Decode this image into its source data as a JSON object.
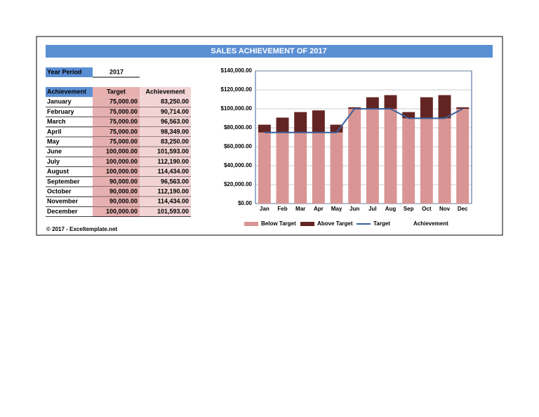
{
  "header": {
    "title": "SALES ACHIEVEMENT OF 2017",
    "year_label": "Year Period",
    "year_value": "2017"
  },
  "table": {
    "columns": [
      "Achievement",
      "Target",
      "Achievement"
    ],
    "rows": [
      [
        "January",
        "75,000.00",
        "83,250.00"
      ],
      [
        "February",
        "75,000.00",
        "90,714.00"
      ],
      [
        "March",
        "75,000.00",
        "96,563.00"
      ],
      [
        "April",
        "75,000.00",
        "98,349.00"
      ],
      [
        "May",
        "75,000.00",
        "83,250.00"
      ],
      [
        "June",
        "100,000.00",
        "101,593.00"
      ],
      [
        "July",
        "100,000.00",
        "112,190.00"
      ],
      [
        "August",
        "100,000.00",
        "114,434.00"
      ],
      [
        "September",
        "90,000.00",
        "96,563.00"
      ],
      [
        "October",
        "90,000.00",
        "112,190.00"
      ],
      [
        "November",
        "90,000.00",
        "114,434.00"
      ],
      [
        "December",
        "100,000.00",
        "101,593.00"
      ]
    ]
  },
  "footer": "© 2017 - Exceltemplate.net",
  "chart_data": {
    "type": "bar",
    "stacked": true,
    "categories": [
      "Jan",
      "Feb",
      "Mar",
      "Apr",
      "May",
      "Jun",
      "Jul",
      "Aug",
      "Sep",
      "Oct",
      "Nov",
      "Dec"
    ],
    "series": [
      {
        "name": "Below Target",
        "color": "#d99594",
        "values": [
          75000,
          75000,
          75000,
          75000,
          75000,
          100000,
          100000,
          100000,
          90000,
          90000,
          90000,
          100000
        ]
      },
      {
        "name": "Above Target",
        "color": "#632523",
        "values": [
          8250,
          15714,
          21563,
          23349,
          8250,
          1593,
          12190,
          14434,
          6563,
          22190,
          24434,
          1593
        ]
      },
      {
        "name": "Target",
        "type": "line",
        "color": "#3a5f9a",
        "values": [
          75000,
          75000,
          75000,
          75000,
          75000,
          100000,
          100000,
          100000,
          90000,
          90000,
          90000,
          100000
        ]
      },
      {
        "name": "Achievement"
      }
    ],
    "ylim": [
      0,
      140000
    ],
    "yticks": [
      {
        "value": 0,
        "label": "$0.00"
      },
      {
        "value": 20000,
        "label": "$20,000.00"
      },
      {
        "value": 40000,
        "label": "$40,000.00"
      },
      {
        "value": 60000,
        "label": "$60,000.00"
      },
      {
        "value": 80000,
        "label": "$80,000.00"
      },
      {
        "value": 100000,
        "label": "$100,000.00"
      },
      {
        "value": 120000,
        "label": "$120,000.00"
      },
      {
        "value": 140000,
        "label": "$140,000.00"
      }
    ],
    "grid": true,
    "legend": "bottom"
  }
}
